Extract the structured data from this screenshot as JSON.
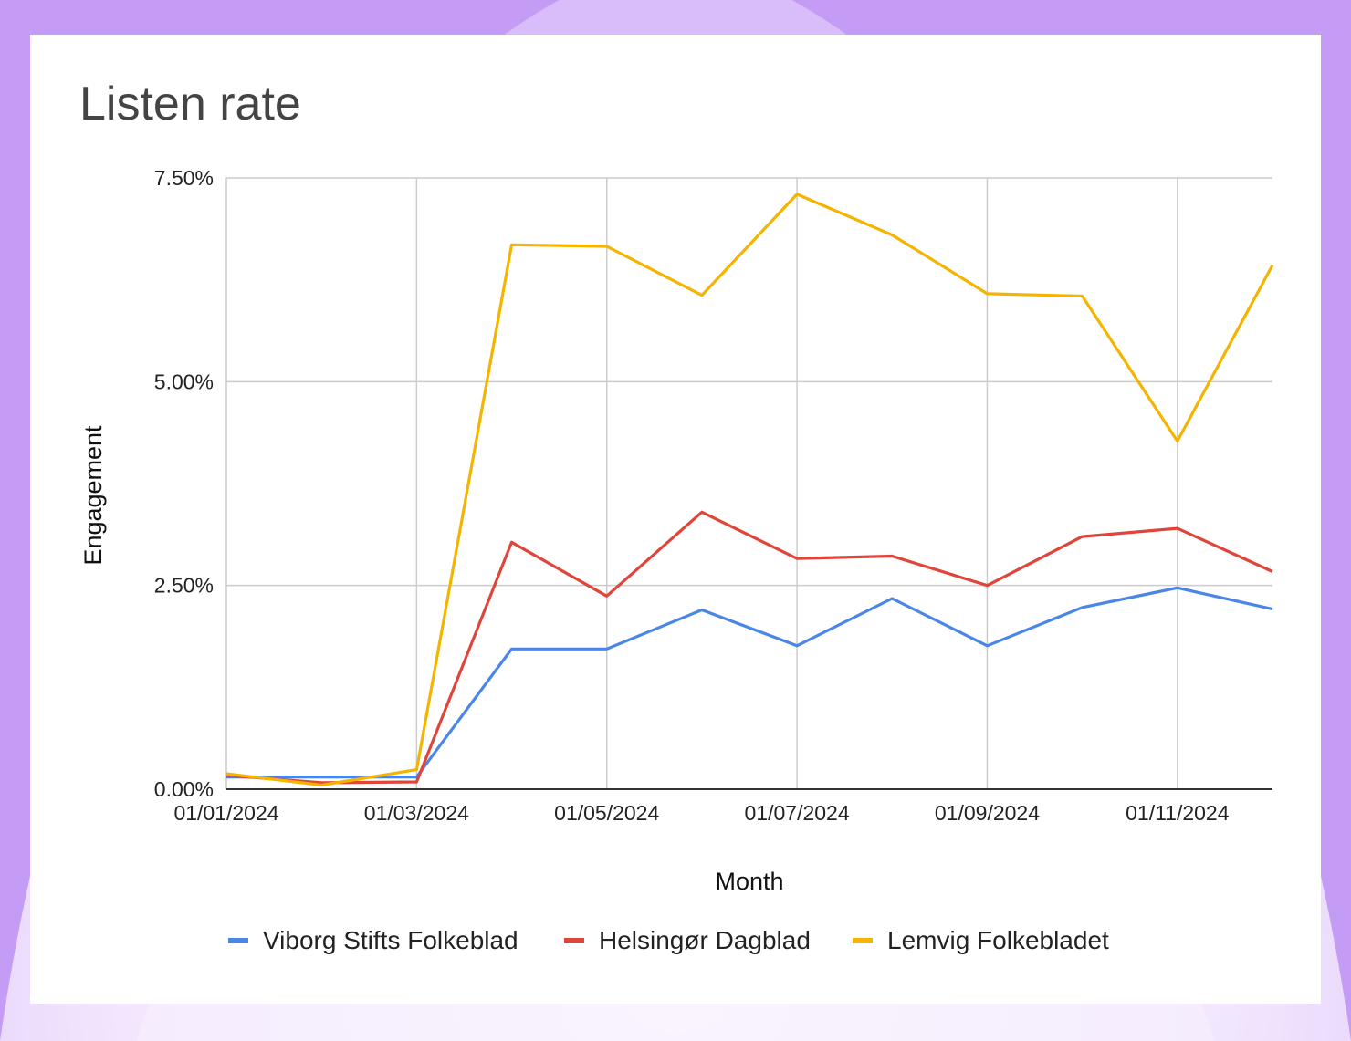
{
  "chart_data": {
    "type": "line",
    "title": "Listen rate",
    "xlabel": "Month",
    "ylabel": "Engagement",
    "x": [
      "2024-01",
      "2024-02",
      "2024-03",
      "2024-04",
      "2024-05",
      "2024-06",
      "2024-07",
      "2024-08",
      "2024-09",
      "2024-10",
      "2024-11",
      "2024-12"
    ],
    "x_tick_labels": [
      "01/01/2024",
      "01/03/2024",
      "01/05/2024",
      "01/07/2024",
      "01/09/2024",
      "01/11/2024"
    ],
    "x_tick_index": [
      0,
      2,
      4,
      6,
      8,
      10
    ],
    "y_tick_labels": [
      "0.00%",
      "2.50%",
      "5.00%",
      "7.50%"
    ],
    "y_ticks": [
      0,
      2.5,
      5,
      7.5
    ],
    "ylim": [
      0,
      7.5
    ],
    "grid": true,
    "legend_position": "bottom",
    "series": [
      {
        "name": "Viborg Stifts Folkeblad",
        "color": "#4a86e8",
        "values": [
          0.15,
          0.15,
          0.15,
          1.72,
          1.72,
          2.2,
          1.76,
          2.34,
          1.76,
          2.23,
          2.47,
          2.21
        ]
      },
      {
        "name": "Helsingør Dagblad",
        "color": "#e0453a",
        "values": [
          0.17,
          0.08,
          0.09,
          3.03,
          2.37,
          3.4,
          2.83,
          2.86,
          2.5,
          3.1,
          3.2,
          2.67
        ]
      },
      {
        "name": "Lemvig Folkebladet",
        "color": "#f4b400",
        "values": [
          0.19,
          0.05,
          0.24,
          6.68,
          6.66,
          6.06,
          7.3,
          6.8,
          6.08,
          6.05,
          4.27,
          6.43
        ]
      }
    ]
  }
}
